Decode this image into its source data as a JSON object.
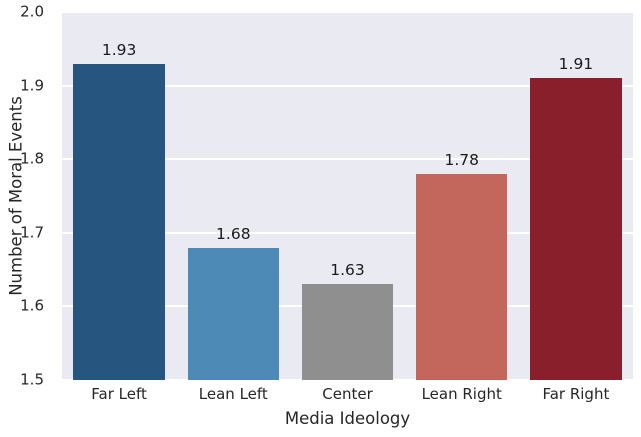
{
  "chart_data": {
    "type": "bar",
    "title": "",
    "categories": [
      "Far Left",
      "Lean Left",
      "Center",
      "Lean Right",
      "Far Right"
    ],
    "values": [
      1.93,
      1.68,
      1.63,
      1.78,
      1.91
    ],
    "value_labels": [
      "1.93",
      "1.68",
      "1.63",
      "1.78",
      "1.91"
    ],
    "colors": [
      "#26567f",
      "#4d8ab5",
      "#8f8f8f",
      "#c3675d",
      "#8a1f2c"
    ],
    "xlabel": "Media Ideology",
    "ylabel": "Number of Moral Events",
    "ylim": [
      1.5,
      2.0
    ],
    "yticks": [
      1.5,
      1.6,
      1.7,
      1.8,
      1.9,
      2.0
    ],
    "ytick_labels": [
      "1.5",
      "1.6",
      "1.7",
      "1.8",
      "1.9",
      "2.0"
    ],
    "grid": true,
    "legend": "none",
    "plot_background": "#eaeaf2",
    "gridline_color": "#ffffff"
  }
}
